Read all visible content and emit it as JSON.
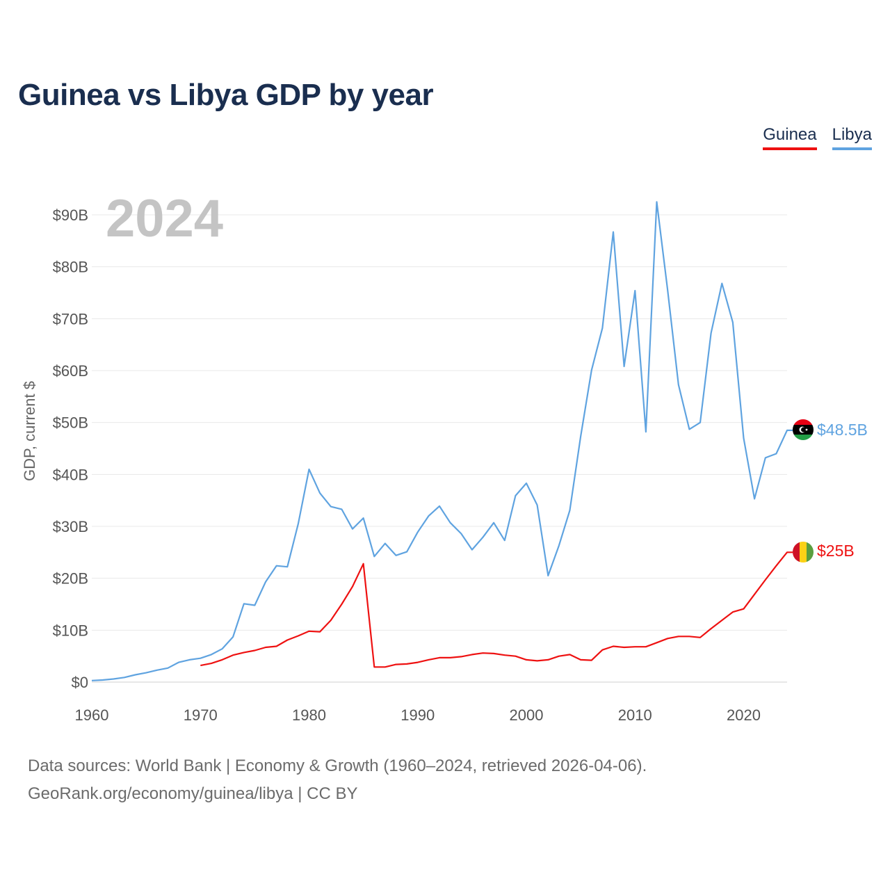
{
  "title": "Guinea vs Libya GDP by year",
  "legend": [
    {
      "label": "Guinea",
      "color": "#ee1111"
    },
    {
      "label": "Libya",
      "color": "#5fa3e0"
    }
  ],
  "year_label": "2024",
  "source_line1": "Data sources: World Bank | Economy & Growth (1960–2024, retrieved 2026-04-06).",
  "source_line2": "GeoRank.org/economy/guinea/libya | CC BY",
  "chart_data": {
    "type": "line",
    "title": "Guinea vs Libya GDP by year",
    "xlabel": "",
    "ylabel": "GDP, current $",
    "xlim": [
      1960,
      2024
    ],
    "ylim": [
      0,
      90
    ],
    "unit": "billions USD",
    "x_ticks": [
      1960,
      1970,
      1980,
      1990,
      2000,
      2010,
      2020
    ],
    "y_ticks": [
      0,
      10,
      20,
      30,
      40,
      50,
      60,
      70,
      80,
      90
    ],
    "y_tick_labels": [
      "$0",
      "$10B",
      "$20B",
      "$30B",
      "$40B",
      "$50B",
      "$60B",
      "$70B",
      "$80B",
      "$90B"
    ],
    "grid": true,
    "series": [
      {
        "name": "Libya",
        "color": "#5fa3e0",
        "end_label": "$48.5B",
        "x": [
          1960,
          1961,
          1962,
          1963,
          1964,
          1965,
          1966,
          1967,
          1968,
          1969,
          1970,
          1971,
          1972,
          1973,
          1974,
          1975,
          1976,
          1977,
          1978,
          1979,
          1980,
          1981,
          1982,
          1983,
          1984,
          1985,
          1986,
          1987,
          1988,
          1989,
          1990,
          1991,
          1992,
          1993,
          1994,
          1995,
          1996,
          1997,
          1998,
          1999,
          2000,
          2001,
          2002,
          2003,
          2004,
          2005,
          2006,
          2007,
          2008,
          2009,
          2010,
          2011,
          2012,
          2013,
          2014,
          2015,
          2016,
          2017,
          2018,
          2019,
          2020,
          2021,
          2022,
          2023,
          2024
        ],
        "values": [
          0.3,
          0.4,
          0.6,
          0.9,
          1.4,
          1.8,
          2.3,
          2.7,
          3.8,
          4.3,
          4.6,
          5.3,
          6.4,
          8.7,
          15.1,
          14.8,
          19.3,
          22.4,
          22.2,
          30.5,
          41.0,
          36.4,
          33.8,
          33.3,
          29.5,
          31.6,
          24.2,
          26.7,
          24.4,
          25.1,
          28.9,
          32.0,
          33.9,
          30.7,
          28.6,
          25.5,
          27.9,
          30.7,
          27.3,
          35.9,
          38.3,
          34.1,
          20.5,
          26.3,
          33.1,
          47.3,
          60.1,
          68.2,
          86.7,
          60.8,
          75.4,
          48.2,
          92.5,
          75.6,
          57.3,
          48.7,
          50.0,
          67.2,
          76.8,
          69.3,
          47.0,
          35.3,
          43.2,
          44.0,
          48.5
        ]
      },
      {
        "name": "Guinea",
        "color": "#ee1111",
        "end_label": "$25B",
        "x": [
          1970,
          1971,
          1972,
          1973,
          1974,
          1975,
          1976,
          1977,
          1978,
          1979,
          1980,
          1981,
          1982,
          1983,
          1984,
          1985,
          1986,
          1987,
          1988,
          1989,
          1990,
          1991,
          1992,
          1993,
          1994,
          1995,
          1996,
          1997,
          1998,
          1999,
          2000,
          2001,
          2002,
          2003,
          2004,
          2005,
          2006,
          2007,
          2008,
          2009,
          2010,
          2011,
          2012,
          2013,
          2014,
          2015,
          2016,
          2017,
          2018,
          2019,
          2020,
          2021,
          2022,
          2023,
          2024
        ],
        "values": [
          3.2,
          3.6,
          4.3,
          5.2,
          5.7,
          6.1,
          6.7,
          6.9,
          8.1,
          8.9,
          9.8,
          9.7,
          11.9,
          15.0,
          18.4,
          22.8,
          2.9,
          2.9,
          3.4,
          3.5,
          3.8,
          4.3,
          4.7,
          4.7,
          4.9,
          5.3,
          5.6,
          5.5,
          5.2,
          5.0,
          4.3,
          4.1,
          4.3,
          5.0,
          5.3,
          4.3,
          4.2,
          6.2,
          6.9,
          6.7,
          6.8,
          6.8,
          7.6,
          8.4,
          8.8,
          8.8,
          8.6,
          10.3,
          11.9,
          13.5,
          14.1,
          16.9,
          19.7,
          22.4,
          25.0
        ]
      }
    ]
  }
}
